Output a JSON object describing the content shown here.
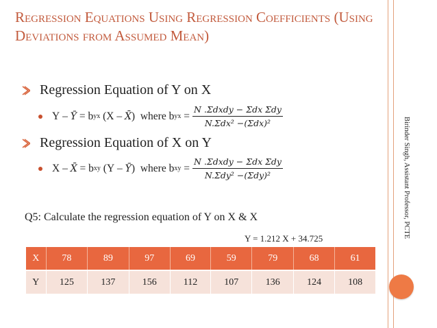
{
  "title": "Regression Equations Using Regression Coefficients (Using Deviations from Assumed Mean)",
  "sections": [
    {
      "heading": "Regression Equation of Y on X",
      "formula": {
        "lhs_var": "Y",
        "lhs_mean": "Ȳ",
        "coef": "b",
        "coef_sub": "yx",
        "rhs_var": "X",
        "rhs_mean": "X̄",
        "where": "where b",
        "where_sub": "yx",
        "numerator": "N .Σdxdy − Σdx Σdy",
        "denominator": "N.Σdx² −(Σdx)²"
      }
    },
    {
      "heading": "Regression Equation of X on Y",
      "formula": {
        "lhs_var": "X",
        "lhs_mean": "X̄",
        "coef": "b",
        "coef_sub": "xy",
        "rhs_var": "Y",
        "rhs_mean": "Ȳ",
        "where": "where b",
        "where_sub": "xy",
        "numerator": "N .Σdxdy − Σdx Σdy",
        "denominator": "N.Σdy² −(Σdy)²"
      }
    }
  ],
  "question": "Q5: Calculate the regression equation of Y on X & X",
  "answer": "Y = 1.212 X + 34.725",
  "table": {
    "row_x_label": "X",
    "row_y_label": "Y",
    "x_values": [
      "78",
      "89",
      "97",
      "69",
      "59",
      "79",
      "68",
      "61"
    ],
    "y_values": [
      "125",
      "137",
      "156",
      "112",
      "107",
      "136",
      "124",
      "108"
    ]
  },
  "side_label": "Birinder Singh, Assistant Professor, PCTE",
  "colors": {
    "accent": "#c25a3c",
    "header": "#e8673f",
    "cell": "#f6e2da"
  },
  "icons": {
    "bullet": "bullet-icon"
  }
}
